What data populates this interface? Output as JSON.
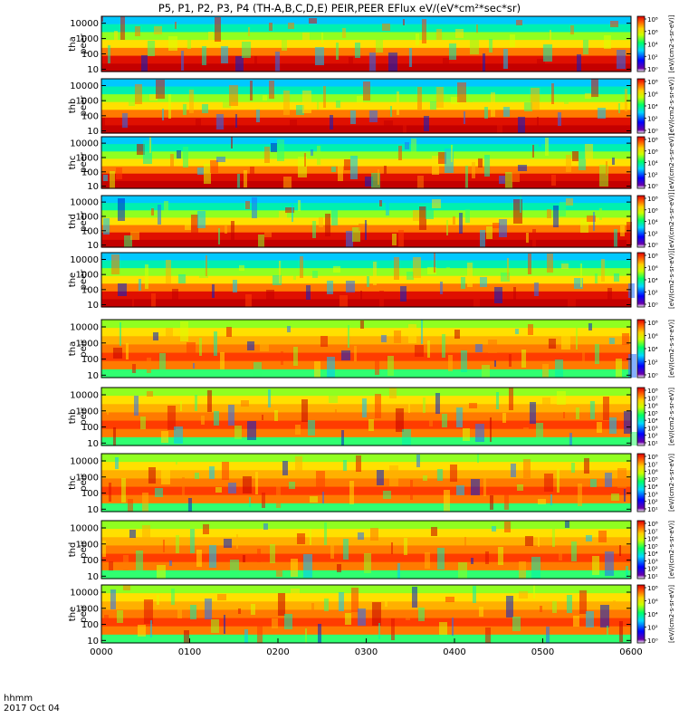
{
  "chart_data": {
    "type": "heatmap",
    "title": "P5, P1, P2, P3, P4 (TH-A,B,C,D,E) PEIR,PEER EFlux eV/(eV*cm²*sec*sr)",
    "x_time_label": "hhmm",
    "x_date_label": "2017 Oct 04",
    "x_ticks": [
      "0000",
      "0100",
      "0200",
      "0300",
      "0400",
      "0500",
      "0600"
    ],
    "x_range_minutes": [
      0,
      360
    ],
    "colorbar_label": "[eV/(cm2-s-sr-eV)]",
    "panels": [
      {
        "id": "tha-peer",
        "line1": "tha",
        "line2": "peer",
        "y_ticks": [
          "10000",
          "1000",
          "100",
          "10"
        ],
        "colorbar_ticks": [
          "10⁸",
          "10⁶",
          "10⁴",
          "10²",
          "10⁰"
        ]
      },
      {
        "id": "thb-peer",
        "line1": "thb",
        "line2": "peer",
        "y_ticks": [
          "10000",
          "1000",
          "100",
          "10"
        ],
        "colorbar_ticks": [
          "10⁸",
          "10⁶",
          "10⁴",
          "10²",
          "10⁰"
        ]
      },
      {
        "id": "thc-peer",
        "line1": "thc",
        "line2": "peer",
        "y_ticks": [
          "10000",
          "1000",
          "100",
          "10"
        ],
        "colorbar_ticks": [
          "10⁸",
          "10⁶",
          "10⁴",
          "10²",
          "10⁰"
        ]
      },
      {
        "id": "thd-peer",
        "line1": "thd",
        "line2": "peer",
        "y_ticks": [
          "10000",
          "1000",
          "100",
          "10"
        ],
        "colorbar_ticks": [
          "10⁸",
          "10⁶",
          "10⁴",
          "10²",
          "10⁰"
        ]
      },
      {
        "id": "the-peer",
        "line1": "the",
        "line2": "peer",
        "y_ticks": [
          "10000",
          "1000",
          "100",
          "10"
        ],
        "colorbar_ticks": [
          "10⁸",
          "10⁶",
          "10⁴",
          "10²",
          "10⁰"
        ]
      },
      {
        "id": "tha-peir",
        "line1": "tha",
        "line2": "peir",
        "y_ticks": [
          "10000",
          "1000",
          "100",
          "10"
        ],
        "colorbar_ticks": [
          "10⁸",
          "10⁶",
          "10⁴",
          "10²",
          "10⁰"
        ]
      },
      {
        "id": "thb-peir",
        "line1": "thb",
        "line2": "peir",
        "y_ticks": [
          "10000",
          "1000",
          "100",
          "10"
        ],
        "colorbar_ticks": [
          "10⁸",
          "10⁷",
          "10⁶",
          "10⁵",
          "10⁴",
          "10³",
          "10²",
          "10¹"
        ]
      },
      {
        "id": "thc-peir",
        "line1": "thc",
        "line2": "peir",
        "y_ticks": [
          "10000",
          "1000",
          "100",
          "10"
        ],
        "colorbar_ticks": [
          "10⁸",
          "10⁷",
          "10⁶",
          "10⁵",
          "10⁴",
          "10³",
          "10²",
          "10¹"
        ]
      },
      {
        "id": "thd-peir",
        "line1": "thd",
        "line2": "peir",
        "y_ticks": [
          "10000",
          "1000",
          "100",
          "10"
        ],
        "colorbar_ticks": [
          "10⁸",
          "10⁷",
          "10⁶",
          "10⁵",
          "10⁴",
          "10³",
          "10²",
          "10¹"
        ]
      },
      {
        "id": "the-peir",
        "line1": "the",
        "line2": "peir",
        "y_ticks": [
          "10000",
          "1000",
          "100",
          "10"
        ],
        "colorbar_ticks": [
          "10⁸",
          "10⁶",
          "10⁴",
          "10²",
          "10⁰"
        ]
      }
    ]
  }
}
